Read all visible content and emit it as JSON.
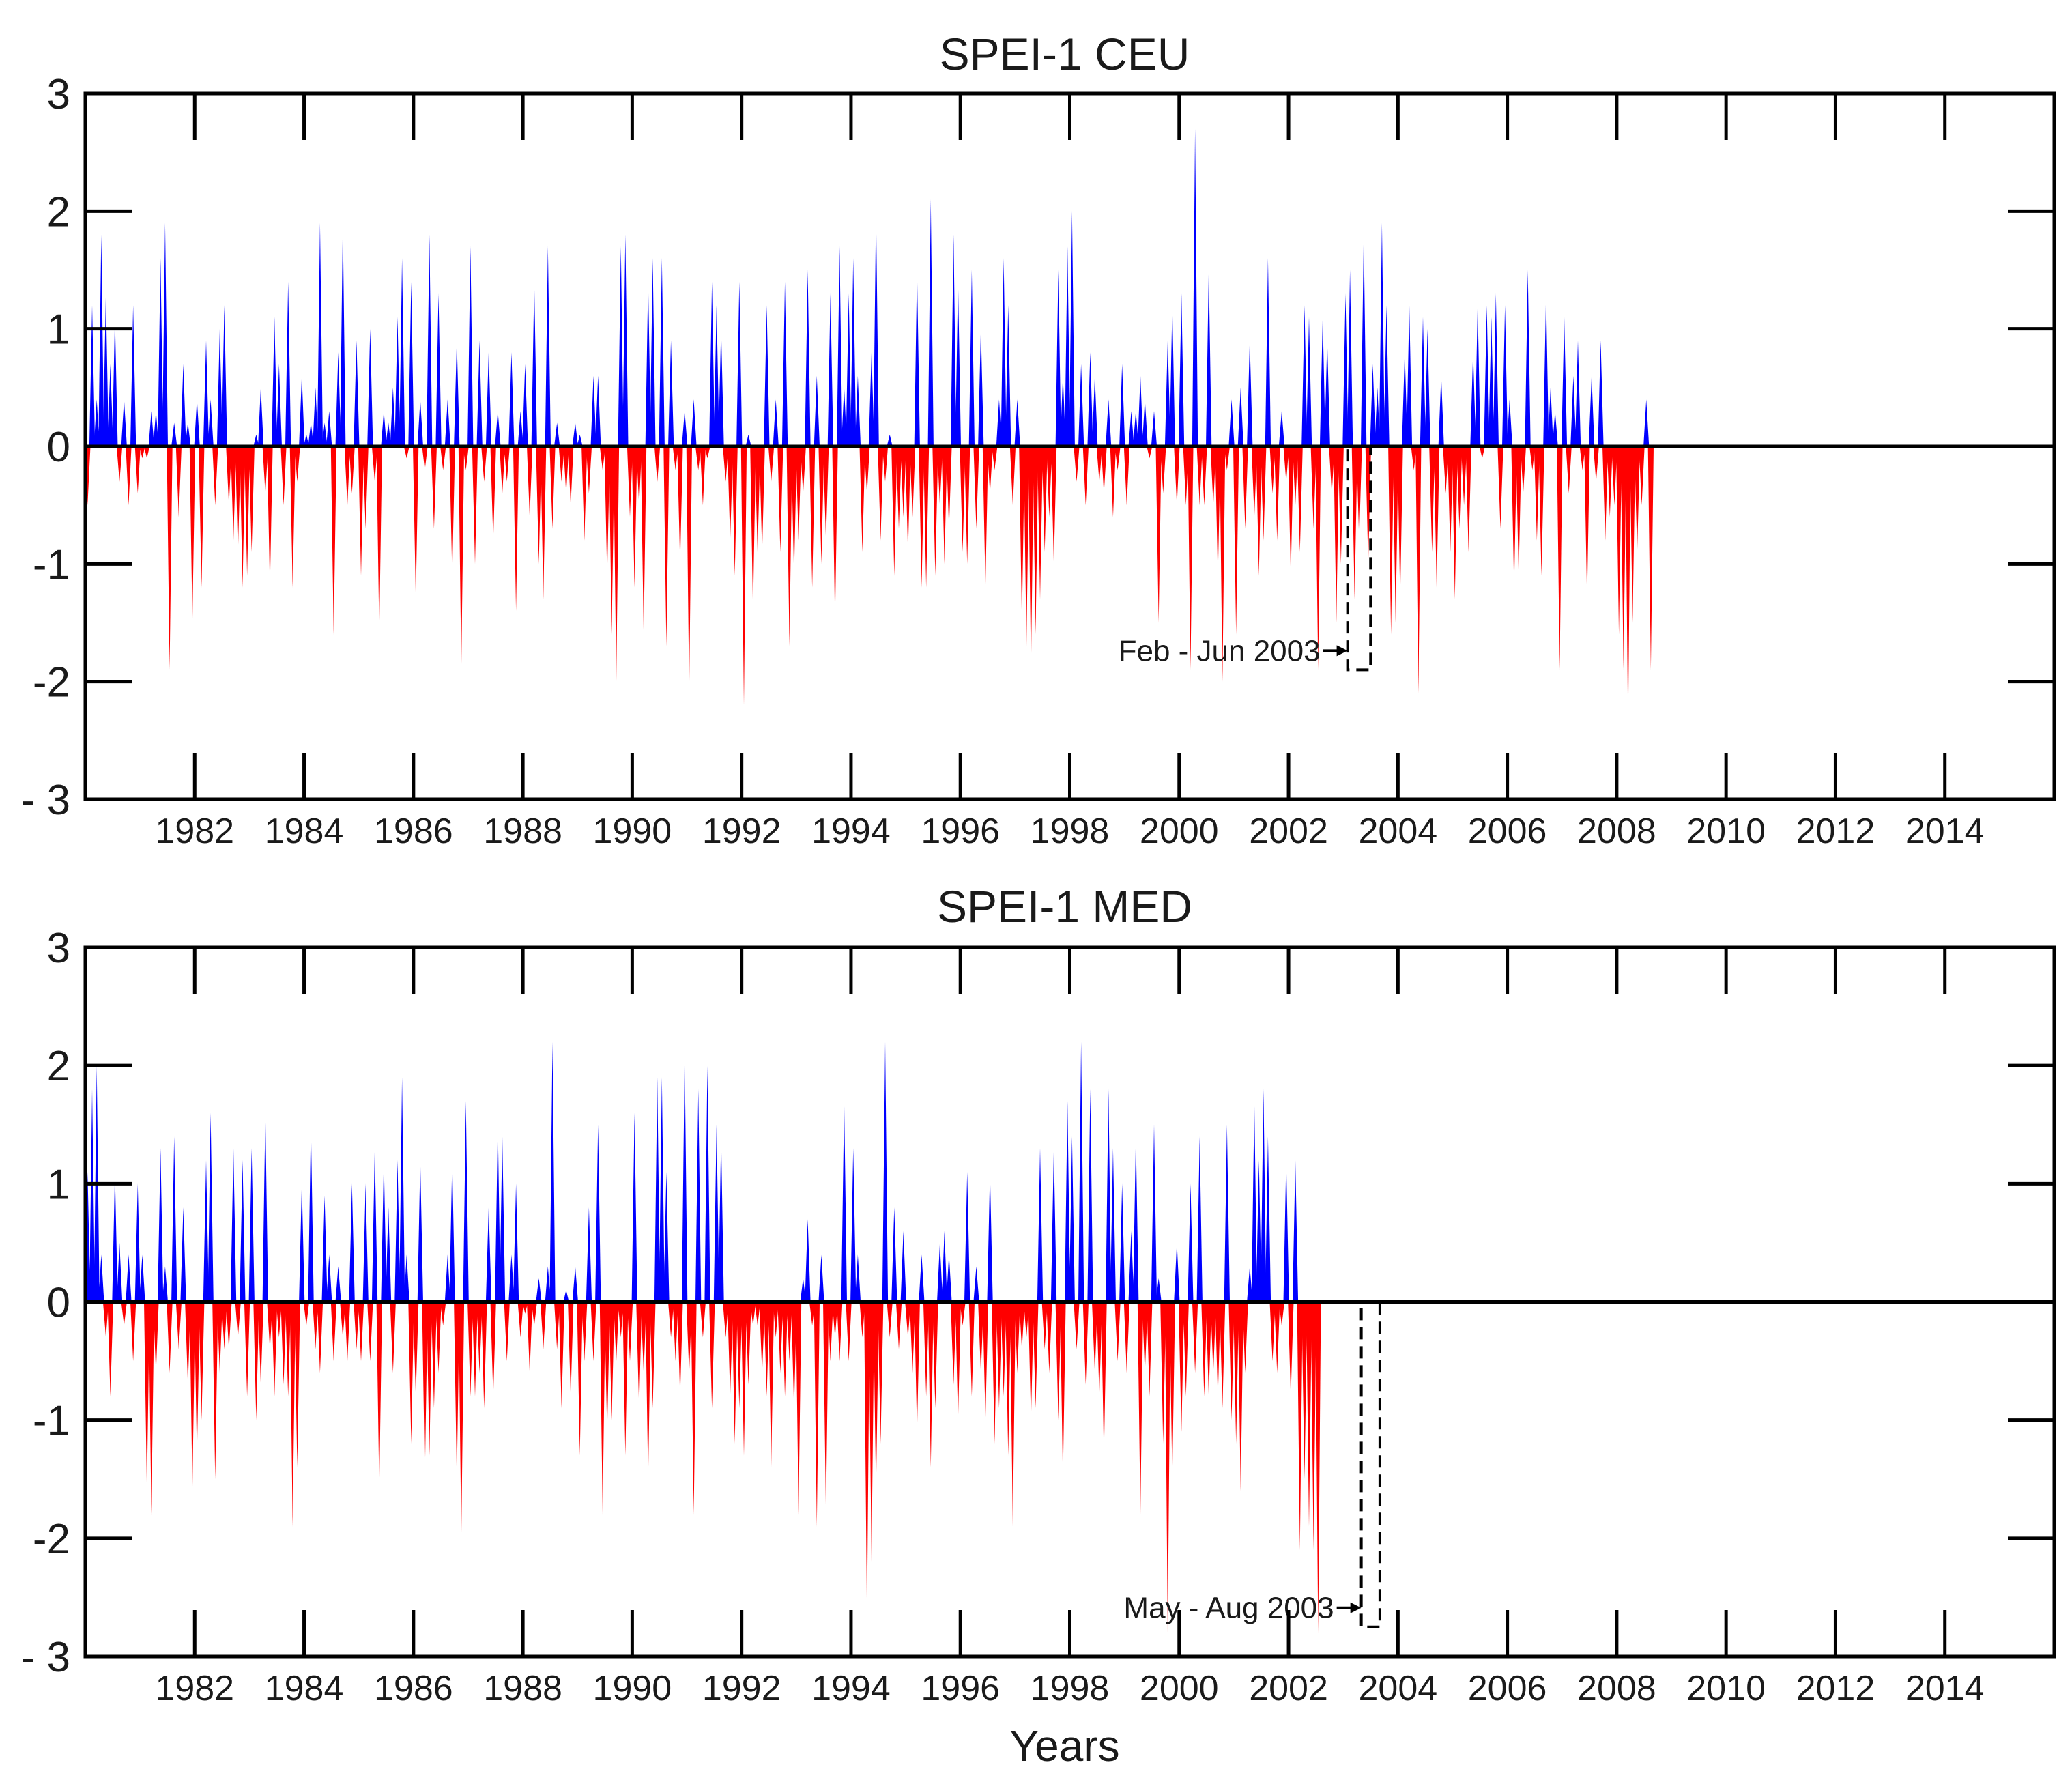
{
  "figure": {
    "xlabel": "Years"
  },
  "colors": {
    "positive": "#0000ff",
    "negative": "#ff0000",
    "axis": "#000000"
  },
  "chart_data": [
    {
      "type": "area",
      "title": "SPEI-1 CEU",
      "xlabel": "",
      "ylabel": "",
      "xlim": [
        1980.0,
        2016.0
      ],
      "ylim": [
        -3,
        3
      ],
      "yticks": [
        3,
        2,
        1,
        0,
        -1,
        -2,
        -3
      ],
      "ytick_labels": [
        "3",
        "2",
        "1",
        "0",
        "-1",
        "-2",
        "- 3"
      ],
      "xticks": [
        1982,
        1984,
        1986,
        1988,
        1990,
        1992,
        1994,
        1996,
        1998,
        2000,
        2002,
        2004,
        2006,
        2008,
        2010,
        2012,
        2014
      ],
      "xtick_labels": [
        "1982",
        "1984",
        "1986",
        "1988",
        "1990",
        "1992",
        "1994",
        "1996",
        "1998",
        "2000",
        "2002",
        "2004",
        "2006",
        "2008",
        "2010",
        "2012",
        "2014"
      ],
      "x_start": 1980.0,
      "x_step": 0.08333,
      "values": [
        -0.5,
        1.2,
        0.4,
        1.8,
        1.3,
        0.7,
        1.1,
        -0.3,
        0.4,
        -0.5,
        1.2,
        -0.4,
        -0.1,
        -0.1,
        0.3,
        0.3,
        1.6,
        1.9,
        -1.9,
        0.2,
        -0.6,
        0.7,
        0.2,
        -1.5,
        0.4,
        -1.2,
        0.9,
        0.4,
        -0.5,
        1.0,
        1.2,
        -0.5,
        -0.8,
        -0.9,
        -1.2,
        -1.1,
        -0.9,
        0.1,
        0.5,
        -0.4,
        -1.2,
        1.1,
        0.7,
        -0.5,
        1.4,
        -1.2,
        -0.3,
        0.6,
        0.1,
        0.2,
        0.5,
        1.9,
        0.2,
        0.3,
        -1.6,
        0.8,
        1.9,
        -0.5,
        -0.4,
        0.9,
        -1.1,
        -0.7,
        1.0,
        -0.3,
        -1.6,
        0.3,
        0.2,
        0.5,
        1.1,
        1.6,
        -0.1,
        1.4,
        -1.3,
        0.4,
        -0.2,
        1.8,
        -0.7,
        1.3,
        -0.2,
        0.4,
        -1.1,
        0.9,
        -1.9,
        -0.2,
        1.7,
        -1.0,
        0.9,
        -0.3,
        0.8,
        -0.8,
        0.3,
        -0.4,
        -0.3,
        0.8,
        -1.4,
        0.3,
        0.7,
        -0.6,
        1.4,
        -1.0,
        -1.3,
        1.7,
        -0.7,
        0.2,
        -0.3,
        -0.4,
        -0.5,
        0.2,
        0.1,
        -0.8,
        -0.4,
        0.6,
        0.6,
        -0.2,
        -1.1,
        -1.6,
        -2.0,
        1.7,
        1.8,
        -0.6,
        -1.2,
        -0.5,
        -1.6,
        1.4,
        1.6,
        -0.3,
        1.6,
        -1.7,
        0.9,
        -0.2,
        -1.0,
        0.3,
        -2.1,
        0.4,
        -0.2,
        -0.5,
        -0.1,
        1.4,
        1.2,
        1.0,
        -0.3,
        -0.8,
        -1.1,
        1.4,
        -2.2,
        0.1,
        -1.4,
        -0.9,
        -0.9,
        1.2,
        -0.3,
        0.4,
        -0.9,
        1.4,
        -1.7,
        -1.1,
        -0.8,
        -0.4,
        1.5,
        -1.2,
        0.6,
        -1.0,
        -0.8,
        1.3,
        -1.5,
        1.7,
        0.5,
        1.3,
        1.6,
        0.6,
        -0.9,
        -0.4,
        0.8,
        2.0,
        -0.8,
        -0.3,
        0.1,
        -1.1,
        -0.7,
        -0.6,
        -0.9,
        -0.6,
        1.5,
        -1.2,
        -1.2,
        2.1,
        -1.1,
        -0.5,
        -1.0,
        -0.7,
        1.8,
        1.4,
        -0.9,
        -1.0,
        1.5,
        -0.7,
        1.0,
        -1.2,
        -0.4,
        -0.2,
        0.4,
        1.6,
        1.2,
        -0.5,
        0.4,
        -1.5,
        -1.7,
        -1.9,
        -1.6,
        -1.3,
        -0.9,
        -0.6,
        -1.0,
        1.5,
        0.6,
        1.7,
        2.0,
        -0.3,
        0.7,
        -0.5,
        0.8,
        0.6,
        -0.3,
        -0.4,
        0.4,
        -0.6,
        -0.2,
        0.7,
        -0.5,
        0.3,
        0.3,
        0.6,
        0.4,
        -0.1,
        0.3,
        -1.5,
        -0.4,
        0.9,
        1.2,
        -0.5,
        1.3,
        -0.5,
        -1.9,
        2.7,
        -0.5,
        -0.5,
        1.5,
        -0.5,
        -1.1,
        -2.0,
        -0.2,
        0.4,
        -1.6,
        0.5,
        -0.7,
        0.9,
        -0.6,
        -1.1,
        -0.8,
        1.6,
        -0.4,
        -0.8,
        0.3,
        -0.3,
        -1.1,
        -0.5,
        -0.9,
        1.2,
        1.1,
        -0.7,
        -1.9,
        1.1,
        0.9,
        -0.4,
        -1.5,
        -1.0,
        1.3,
        1.5,
        -1.3,
        -0.8,
        1.8,
        -1.0,
        0.7,
        0.5,
        1.9,
        1.2,
        -1.6,
        -1.5,
        -1.3,
        0.8,
        1.2,
        -0.2,
        -2.1,
        1.1,
        1.0,
        -0.9,
        -1.2,
        0.6,
        -0.4,
        -0.9,
        -1.3,
        -0.7,
        -0.5,
        -0.9,
        0.8,
        1.2,
        -0.1,
        1.2,
        1.1,
        1.3,
        -0.7,
        1.2,
        0.4,
        -1.2,
        -1.1,
        -0.4,
        1.5,
        -0.2,
        -0.8,
        -1.1,
        1.3,
        0.5,
        0.3,
        -1.9,
        1.1,
        -0.4,
        0.6,
        0.9,
        -0.2,
        -1.3,
        0.6,
        -0.3,
        0.9,
        -0.8,
        -0.6,
        -0.5,
        -1.6,
        -1.9,
        -2.4,
        -1.5,
        -0.9,
        -0.5,
        0.4,
        -1.9
      ],
      "annotation": {
        "text": "Feb - Jun 2003",
        "x_start": 2003.08,
        "x_end": 2003.5,
        "y_bottom": -1.9,
        "y_top": 0.0
      }
    },
    {
      "type": "area",
      "title": "SPEI-1 MED",
      "xlabel": "Years",
      "ylabel": "",
      "xlim": [
        1980.0,
        2016.0
      ],
      "ylim": [
        -3,
        3
      ],
      "yticks": [
        3,
        2,
        1,
        0,
        -1,
        -2,
        -3
      ],
      "ytick_labels": [
        "3",
        "2",
        "1",
        "0",
        "-1",
        "-2",
        "- 3"
      ],
      "xticks": [
        1982,
        1984,
        1986,
        1988,
        1990,
        1992,
        1994,
        1996,
        1998,
        2000,
        2002,
        2004,
        2006,
        2008,
        2010,
        2012,
        2014
      ],
      "xtick_labels": [
        "1982",
        "1984",
        "1986",
        "1988",
        "1990",
        "1992",
        "1994",
        "1996",
        "1998",
        "2000",
        "2002",
        "2004",
        "2006",
        "2008",
        "2010",
        "2012",
        "2014"
      ],
      "x_start": 1980.0,
      "x_step": 0.08333,
      "values": [
        1.1,
        1.8,
        2.0,
        0.4,
        -0.3,
        -0.8,
        1.1,
        0.5,
        -0.2,
        0.4,
        -0.5,
        1.0,
        0.4,
        -1.6,
        -1.8,
        -0.6,
        1.3,
        0.3,
        -0.6,
        1.4,
        -0.4,
        0.8,
        -0.7,
        -1.6,
        -1.3,
        -1.0,
        1.2,
        1.6,
        -1.5,
        -0.6,
        -0.4,
        -0.4,
        1.3,
        -0.3,
        1.2,
        -0.8,
        1.3,
        -1.0,
        -0.7,
        1.6,
        -0.4,
        -0.8,
        -0.3,
        -0.7,
        -0.8,
        -1.9,
        -1.4,
        1.0,
        -0.2,
        1.5,
        -0.4,
        -0.6,
        0.9,
        0.4,
        -0.5,
        0.3,
        -0.3,
        -0.5,
        1.0,
        -0.4,
        -0.5,
        1.0,
        -0.5,
        1.3,
        -1.6,
        1.2,
        0.8,
        -0.6,
        1.2,
        1.9,
        0.4,
        -1.2,
        -0.8,
        1.2,
        -1.5,
        -1.3,
        -0.9,
        -0.6,
        -0.2,
        0.4,
        1.2,
        -1.5,
        -2.0,
        1.7,
        -0.8,
        -0.8,
        -0.6,
        -0.9,
        0.8,
        -0.8,
        1.5,
        1.4,
        -0.5,
        0.4,
        1.0,
        -0.3,
        -0.1,
        -0.6,
        -0.2,
        0.2,
        -0.4,
        0.3,
        2.2,
        -0.4,
        -0.9,
        0.1,
        -0.8,
        0.3,
        -1.3,
        -0.5,
        0.8,
        -0.5,
        1.5,
        -1.8,
        -1.1,
        -1.0,
        -0.5,
        -0.3,
        -1.3,
        -0.5,
        1.6,
        -0.9,
        -0.6,
        -1.5,
        -0.9,
        1.9,
        1.9,
        1.1,
        -0.3,
        -0.5,
        -0.8,
        2.1,
        -0.6,
        -1.8,
        1.8,
        -0.3,
        2.0,
        -0.9,
        1.5,
        1.4,
        -0.3,
        -0.8,
        -1.2,
        -0.9,
        -1.3,
        -0.7,
        -0.2,
        -0.2,
        -0.6,
        -0.8,
        -1.4,
        -0.3,
        -0.6,
        -0.8,
        -0.5,
        -0.9,
        -1.8,
        0.2,
        0.7,
        -0.2,
        -1.9,
        0.4,
        -1.8,
        -0.5,
        -0.3,
        -0.5,
        1.7,
        -0.5,
        1.3,
        0.4,
        -0.3,
        -2.7,
        -2.2,
        -1.6,
        -1.2,
        2.2,
        -0.3,
        0.8,
        -0.4,
        0.6,
        -0.3,
        -0.6,
        -1.1,
        0.4,
        -0.8,
        -1.4,
        -0.9,
        0.5,
        0.6,
        0.4,
        -0.7,
        -1.0,
        -0.2,
        1.1,
        -0.8,
        0.3,
        -0.6,
        -1.0,
        1.1,
        -1.2,
        -0.9,
        -0.8,
        -1.3,
        -1.9,
        -0.6,
        -0.4,
        -0.3,
        -1.0,
        -0.9,
        1.3,
        -0.4,
        -0.6,
        1.3,
        -1.0,
        -1.5,
        1.7,
        1.4,
        -0.4,
        2.2,
        -0.7,
        1.8,
        -0.6,
        -0.8,
        -1.3,
        1.8,
        1.3,
        -0.5,
        1.0,
        -0.6,
        0.6,
        1.4,
        -1.8,
        -0.6,
        -0.8,
        1.5,
        0.2,
        -1.2,
        -2.8,
        -1.5,
        0.5,
        -1.1,
        -0.8,
        1.0,
        -0.6,
        1.4,
        -0.8,
        -0.8,
        -0.6,
        -0.8,
        -0.9,
        1.5,
        -1.0,
        -1.2,
        -1.6,
        -0.6,
        0.3,
        1.7,
        1.2,
        1.8,
        1.4,
        -0.5,
        -0.6,
        -0.2,
        1.2,
        -0.8,
        1.2,
        -2.1,
        -1.5,
        -1.9,
        -2.1,
        -2.8
      ],
      "annotation": {
        "text": "May - Aug 2003",
        "x_start": 2003.33,
        "x_end": 2003.67,
        "y_bottom": -2.75,
        "y_top": 0.0
      }
    }
  ]
}
